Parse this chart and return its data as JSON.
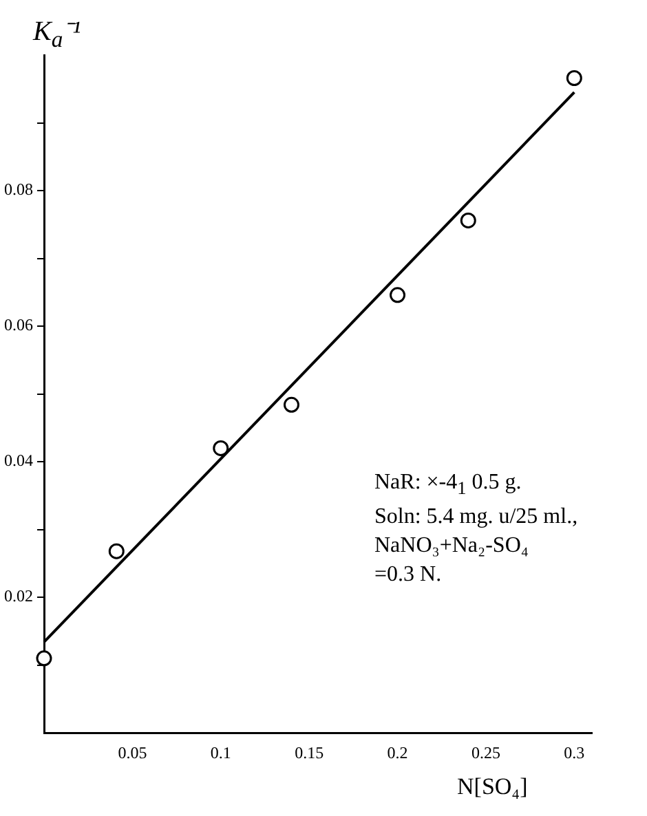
{
  "chart_data": {
    "type": "scatter",
    "xlabel": "N[SO₄]",
    "ylabel": "K$_{a}$⁻¹",
    "annotations": [
      "NaR: ×-4$_{1}$ 0.5 g.",
      "Soln: 5.4 mg. u/25 ml.,",
      "NaNO₃+Na₂-SO₄",
      "=0.3 N."
    ],
    "xlim": [
      0,
      0.31
    ],
    "xticks": [
      0.05,
      0.1,
      0.15,
      0.2,
      0.25,
      0.3
    ],
    "ylim": [
      0,
      0.1
    ],
    "yticks": [
      {
        "value": 0.01,
        "label": null
      },
      0.02,
      {
        "value": 0.03,
        "label": null
      },
      0.04,
      {
        "value": 0.05,
        "label": null
      },
      0.06,
      {
        "value": 0.07,
        "label": null
      },
      0.08,
      {
        "value": 0.09,
        "label": null
      }
    ],
    "grid": false,
    "legend": false,
    "marker": "circle",
    "series": [
      {
        "type": "scatter",
        "color": "#000000",
        "x": [
          0.0,
          0.041,
          0.1,
          0.14,
          0.2,
          0.24,
          0.3
        ],
        "values": [
          0.011,
          0.0268,
          0.042,
          0.0484,
          0.0646,
          0.0756,
          0.0966
        ]
      },
      {
        "type": "line",
        "color": "#000000",
        "marker": "none",
        "x": [
          0,
          0.3
        ],
        "values": [
          0.0134,
          0.0945
        ]
      }
    ]
  }
}
